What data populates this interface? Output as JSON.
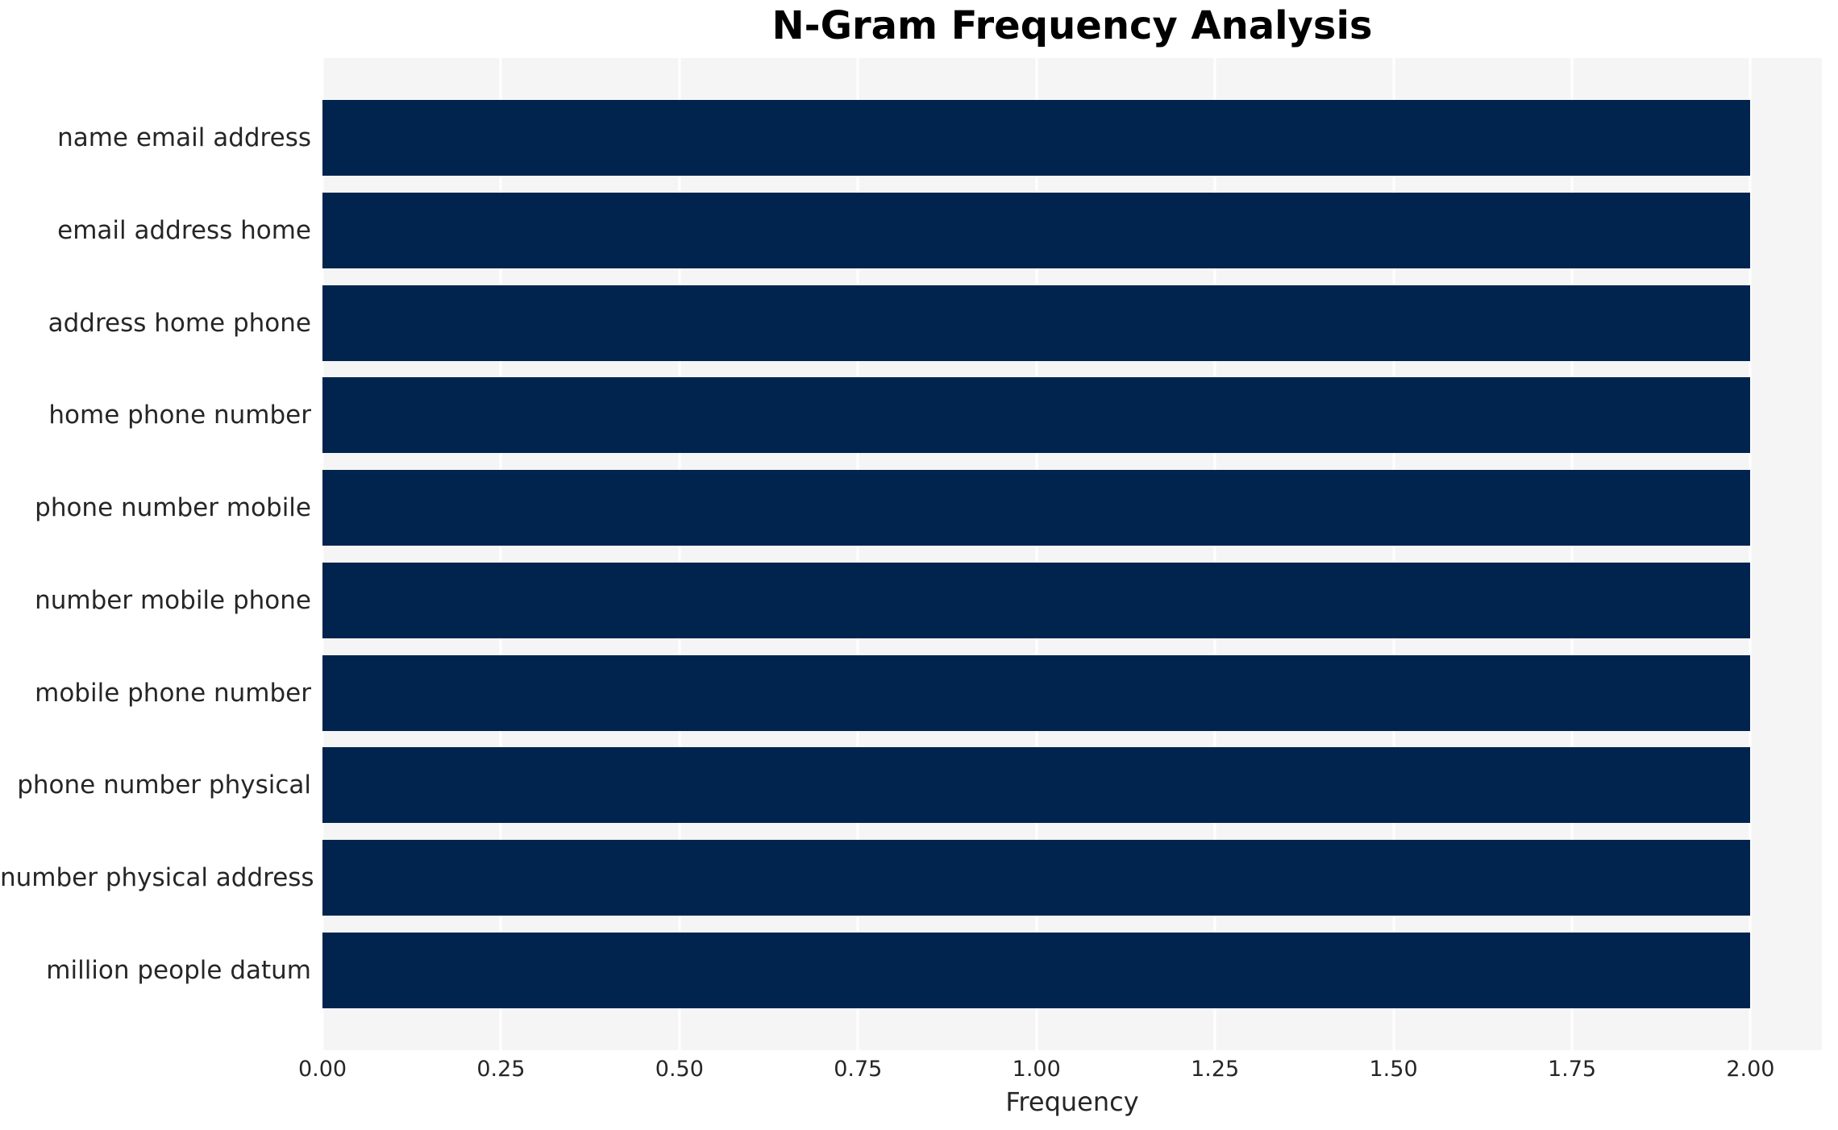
{
  "chart_data": {
    "type": "bar",
    "orientation": "horizontal",
    "title": "N-Gram Frequency Analysis",
    "xlabel": "Frequency",
    "ylabel": "",
    "categories": [
      "name email address",
      "email address home",
      "address home phone",
      "home phone number",
      "phone number mobile",
      "number mobile phone",
      "mobile phone number",
      "phone number physical",
      "number physical address",
      "million people datum"
    ],
    "values": [
      2,
      2,
      2,
      2,
      2,
      2,
      2,
      2,
      2,
      2
    ],
    "xlim": [
      0,
      2.1
    ],
    "xticks": [
      0,
      0.25,
      0.5,
      0.75,
      1.0,
      1.25,
      1.5,
      1.75,
      2.0
    ],
    "xtick_labels": [
      "0.00",
      "0.25",
      "0.50",
      "0.75",
      "1.00",
      "1.25",
      "1.50",
      "1.75",
      "2.00"
    ],
    "legend": "none",
    "grid": "vertical-white-gridlines-on-gray-panel",
    "colors": {
      "bar": "#01244E",
      "panel_background": "#f5f5f5",
      "gridline": "#ffffff",
      "title_text": "#000000",
      "tick_text": "#262626"
    }
  }
}
